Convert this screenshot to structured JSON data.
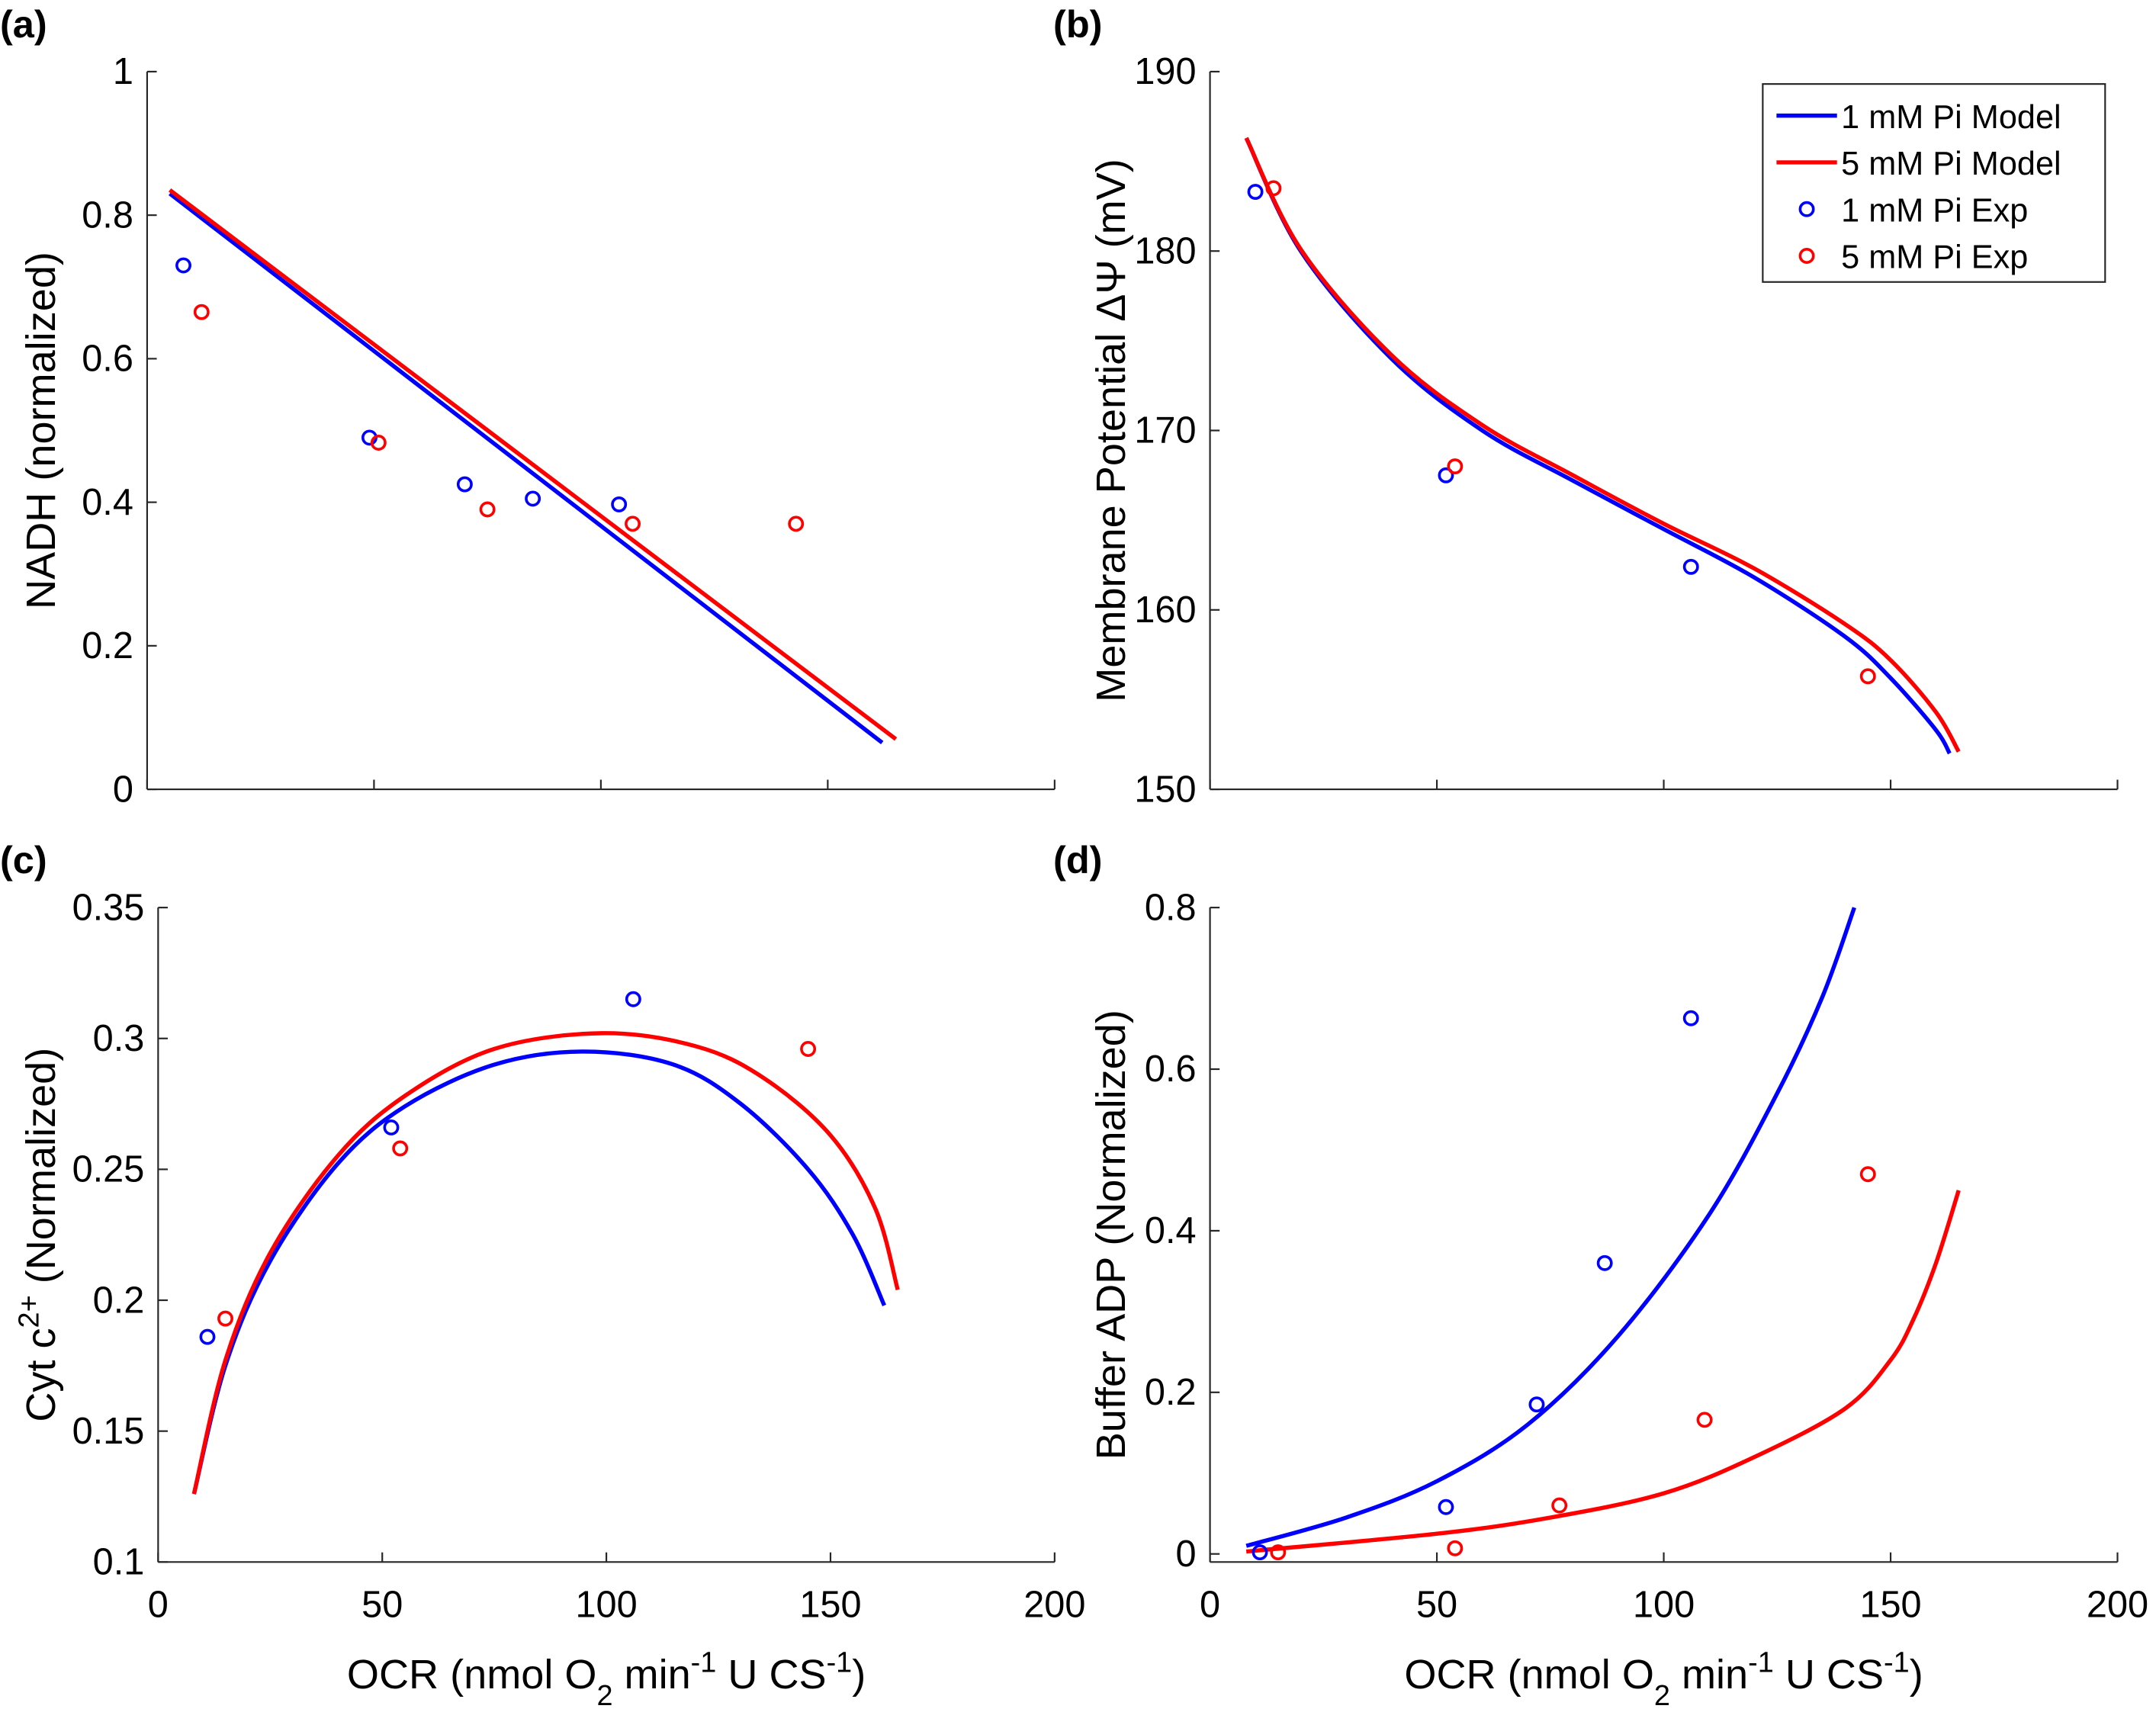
{
  "colors": {
    "series_1mM": "#0000ff",
    "series_5mM": "#ff0000",
    "axis": "#262626"
  },
  "legend": {
    "placement": "top-right of panel (b)",
    "entries": [
      {
        "label": "1 mM Pi Model",
        "kind": "line",
        "color": "#0000ff"
      },
      {
        "label": "5 mM Pi Model",
        "kind": "line",
        "color": "#ff0000"
      },
      {
        "label": "1 mM Pi Exp",
        "kind": "marker",
        "color": "#0000ff"
      },
      {
        "label": "5 mM Pi Exp",
        "kind": "marker",
        "color": "#ff0000"
      }
    ]
  },
  "xlabel_parts": [
    {
      "t": "OCR (nmol O",
      "s": "n"
    },
    {
      "t": "2",
      "s": "sub"
    },
    {
      "t": " min",
      "s": "n"
    },
    {
      "t": "-1",
      "s": "sup"
    },
    {
      "t": " U CS",
      "s": "n"
    },
    {
      "t": "-1",
      "s": "sup"
    },
    {
      "t": ")",
      "s": "n"
    }
  ],
  "chart_data": [
    {
      "panel": "(a)",
      "type": "line",
      "ylabel": "NADH (normalized)",
      "xlabel": "",
      "xlim": [
        0,
        200
      ],
      "ylim": [
        0,
        1
      ],
      "xticks": [
        0,
        50,
        100,
        150,
        200
      ],
      "xticklabels_shown": false,
      "yticks": [
        0,
        0.2,
        0.4,
        0.6,
        0.8,
        1
      ],
      "yticklabels": [
        "0",
        "0.2",
        "0.4",
        "0.6",
        "0.8",
        "1"
      ],
      "series": [
        {
          "name": "1 mM Pi Model",
          "kind": "line",
          "color": "#0000ff",
          "x": [
            5,
            162
          ],
          "y": [
            0.83,
            0.065
          ]
        },
        {
          "name": "5 mM Pi Model",
          "kind": "line",
          "color": "#ff0000",
          "x": [
            5,
            165
          ],
          "y": [
            0.835,
            0.07
          ]
        },
        {
          "name": "1 mM Pi Exp",
          "kind": "scatter",
          "color": "#0000ff",
          "x": [
            8,
            49,
            70,
            85,
            104
          ],
          "y": [
            0.73,
            0.49,
            0.425,
            0.405,
            0.397
          ]
        },
        {
          "name": "5 mM Pi Exp",
          "kind": "scatter",
          "color": "#ff0000",
          "x": [
            12,
            51,
            75,
            107,
            143
          ],
          "y": [
            0.665,
            0.483,
            0.39,
            0.37,
            0.37
          ]
        }
      ]
    },
    {
      "panel": "(b)",
      "type": "line",
      "ylabel": "Membrane Potential ΔΨ (mV)",
      "xlabel": "",
      "xlim": [
        0,
        200
      ],
      "ylim": [
        150,
        190
      ],
      "xticks": [
        0,
        50,
        100,
        150,
        200
      ],
      "xticklabels_shown": false,
      "yticks": [
        150,
        160,
        170,
        180,
        190
      ],
      "yticklabels": [
        "150",
        "160",
        "170",
        "180",
        "190"
      ],
      "series": [
        {
          "name": "1 mM Pi Model",
          "kind": "line",
          "color": "#0000ff",
          "x": [
            8,
            20,
            40,
            60,
            80,
            100,
            120,
            140,
            150,
            160,
            163
          ],
          "y": [
            186.3,
            180,
            174,
            170,
            167.2,
            164.5,
            161.8,
            158.5,
            156.2,
            153.3,
            152
          ]
        },
        {
          "name": "5 mM Pi Model",
          "kind": "line",
          "color": "#ff0000",
          "x": [
            8,
            20,
            40,
            60,
            80,
            100,
            120,
            140,
            150,
            160,
            165
          ],
          "y": [
            186.3,
            180.1,
            174.2,
            170.3,
            167.5,
            164.8,
            162.3,
            159.2,
            157.2,
            154.3,
            152.1
          ]
        },
        {
          "name": "1 mM Pi Exp",
          "kind": "scatter",
          "color": "#0000ff",
          "x": [
            10,
            52,
            106
          ],
          "y": [
            183.3,
            167.5,
            162.4
          ]
        },
        {
          "name": "5 mM Pi Exp",
          "kind": "scatter",
          "color": "#ff0000",
          "x": [
            14,
            54,
            145
          ],
          "y": [
            183.5,
            168,
            156.3
          ]
        }
      ]
    },
    {
      "panel": "(c)",
      "type": "line",
      "ylabel": "Cyt c2+ (Normalized)",
      "xlabel": "OCR (nmol O2 min-1 U CS-1)",
      "xlim": [
        0,
        200
      ],
      "ylim": [
        0.1,
        0.35
      ],
      "xticks": [
        0,
        50,
        100,
        150,
        200
      ],
      "xticklabels": [
        "0",
        "50",
        "100",
        "150",
        "200"
      ],
      "xticklabels_shown": true,
      "yticks": [
        0.1,
        0.15,
        0.2,
        0.25,
        0.3,
        0.35
      ],
      "yticklabels": [
        "0.1",
        "0.15",
        "0.2",
        "0.25",
        "0.3",
        "0.35"
      ],
      "series": [
        {
          "name": "1 mM Pi Model",
          "kind": "line",
          "color": "#0000ff",
          "x": [
            8,
            15,
            25,
            40,
            55,
            75,
            95,
            115,
            130,
            145,
            155,
            162
          ],
          "y": [
            0.126,
            0.175,
            0.215,
            0.252,
            0.274,
            0.29,
            0.295,
            0.29,
            0.275,
            0.25,
            0.225,
            0.198
          ]
        },
        {
          "name": "5 mM Pi Model",
          "kind": "line",
          "color": "#ff0000",
          "x": [
            8,
            15,
            25,
            40,
            55,
            75,
            99,
            120,
            135,
            150,
            160,
            165
          ],
          "y": [
            0.126,
            0.177,
            0.218,
            0.255,
            0.278,
            0.296,
            0.302,
            0.297,
            0.285,
            0.263,
            0.235,
            0.204
          ]
        },
        {
          "name": "1 mM Pi Exp",
          "kind": "scatter",
          "color": "#0000ff",
          "x": [
            11,
            52,
            106
          ],
          "y": [
            0.186,
            0.266,
            0.315
          ]
        },
        {
          "name": "5 mM Pi Exp",
          "kind": "scatter",
          "color": "#ff0000",
          "x": [
            15,
            54,
            145
          ],
          "y": [
            0.193,
            0.258,
            0.296
          ]
        }
      ]
    },
    {
      "panel": "(d)",
      "type": "line",
      "ylabel": "Buffer ADP (Normalized)",
      "xlabel": "OCR (nmol O2 min-1 U CS-1)",
      "xlim": [
        0,
        200
      ],
      "ylim": [
        -0.01,
        0.8
      ],
      "xticks": [
        0,
        50,
        100,
        150,
        200
      ],
      "xticklabels": [
        "0",
        "50",
        "100",
        "150",
        "200"
      ],
      "xticklabels_shown": true,
      "yticks": [
        0,
        0.2,
        0.4,
        0.6,
        0.8
      ],
      "yticklabels": [
        "0",
        "0.2",
        "0.4",
        "0.6",
        "0.8"
      ],
      "series": [
        {
          "name": "1 mM Pi Model",
          "kind": "line",
          "color": "#0000ff",
          "x": [
            8,
            30,
            50,
            70,
            90,
            110,
            125,
            135,
            142
          ],
          "y": [
            0.01,
            0.045,
            0.09,
            0.16,
            0.27,
            0.42,
            0.57,
            0.69,
            0.8
          ]
        },
        {
          "name": "5 mM Pi Model",
          "kind": "line",
          "color": "#ff0000",
          "x": [
            8,
            50,
            75,
            100,
            120,
            140,
            150,
            155,
            160,
            165
          ],
          "y": [
            0.003,
            0.025,
            0.045,
            0.075,
            0.12,
            0.18,
            0.24,
            0.29,
            0.36,
            0.45
          ]
        },
        {
          "name": "1 mM Pi Exp",
          "kind": "scatter",
          "color": "#0000ff",
          "x": [
            11,
            52,
            72,
            87,
            106
          ],
          "y": [
            0.002,
            0.058,
            0.185,
            0.36,
            0.663
          ]
        },
        {
          "name": "5 mM Pi Exp",
          "kind": "scatter",
          "color": "#ff0000",
          "x": [
            15,
            54,
            77,
            109,
            145
          ],
          "y": [
            0.002,
            0.007,
            0.06,
            0.166,
            0.47
          ]
        }
      ]
    }
  ]
}
